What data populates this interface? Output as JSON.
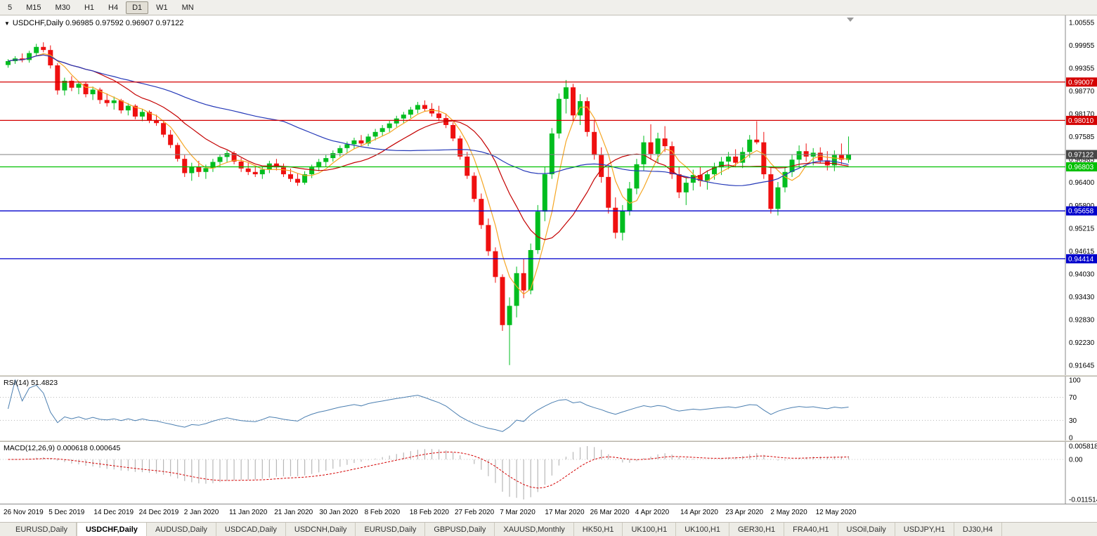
{
  "toolbar": {
    "timeframes": [
      {
        "label": "5",
        "active": false
      },
      {
        "label": "M15",
        "active": false
      },
      {
        "label": "M30",
        "active": false
      },
      {
        "label": "H1",
        "active": false
      },
      {
        "label": "H4",
        "active": false
      },
      {
        "label": "D1",
        "active": true
      },
      {
        "label": "W1",
        "active": false
      },
      {
        "label": "MN",
        "active": false
      }
    ]
  },
  "chart": {
    "menu_icon": "▼",
    "symbol": "USDCHF,Daily",
    "ohlc_text": "0.96985 0.97592 0.96907 0.97122"
  },
  "chart_data": [
    {
      "type": "candlestick",
      "title": "USDCHF,Daily",
      "open": 0.96985,
      "high": 0.97592,
      "low": 0.96907,
      "close": 0.97122,
      "price_max": 1.00555,
      "price_min": 0.91645,
      "y_axis_labels": [
        "1.00555",
        "0.99955",
        "0.99355",
        "0.98770",
        "0.98170",
        "0.97585",
        "0.96985",
        "0.96400",
        "0.95800",
        "0.95215",
        "0.94615",
        "0.94030",
        "0.93430",
        "0.92830",
        "0.92230",
        "0.91645"
      ],
      "x_tick_labels": [
        "26 Nov 2019",
        "5 Dec 2019",
        "14 Dec 2019",
        "24 Dec 2019",
        "2 Jan 2020",
        "11 Jan 2020",
        "21 Jan 2020",
        "30 Jan 2020",
        "8 Feb 2020",
        "18 Feb 2020",
        "27 Feb 2020",
        "7 Mar 2020",
        "17 Mar 2020",
        "26 Mar 2020",
        "4 Apr 2020",
        "14 Apr 2020",
        "23 Apr 2020",
        "2 May 2020",
        "12 May 2020"
      ],
      "up_color": "#00bd1f",
      "down_color": "#ef1010",
      "ma_lines": [
        {
          "period": 5,
          "color": "#f5a623"
        },
        {
          "period": 13,
          "color": "#c40000"
        },
        {
          "period": 40,
          "color": "#2438b8"
        }
      ],
      "hlines": [
        {
          "value": 0.99007,
          "label": "0.99007",
          "color": "#d40000"
        },
        {
          "value": 0.9801,
          "label": "0.98010",
          "color": "#d40000"
        },
        {
          "value": 0.96803,
          "label": "0.96803",
          "color": "#00c000"
        },
        {
          "value": 0.95658,
          "label": "0.95658",
          "color": "#0000cc"
        },
        {
          "value": 0.94414,
          "label": "0.94414",
          "color": "#0000cc"
        }
      ],
      "current_price": {
        "value": 0.97122,
        "label": "0.97122",
        "color": "#808080"
      },
      "ohlc": [
        [
          0.9945,
          0.996,
          0.9938,
          0.9955
        ],
        [
          0.9955,
          0.9968,
          0.9948,
          0.9962
        ],
        [
          0.9962,
          0.9975,
          0.9952,
          0.9958
        ],
        [
          0.9958,
          0.9982,
          0.9951,
          0.9976
        ],
        [
          0.9976,
          1.0,
          0.9968,
          0.9992
        ],
        [
          0.9992,
          1.0004,
          0.9978,
          0.9984
        ],
        [
          0.9984,
          0.9996,
          0.9936,
          0.9944
        ],
        [
          0.9944,
          0.995,
          0.9868,
          0.9879
        ],
        [
          0.9879,
          0.9912,
          0.9866,
          0.9904
        ],
        [
          0.9904,
          0.9916,
          0.9877,
          0.9886
        ],
        [
          0.9886,
          0.9903,
          0.9869,
          0.9896
        ],
        [
          0.9896,
          0.9901,
          0.9861,
          0.9869
        ],
        [
          0.9869,
          0.9889,
          0.9854,
          0.9881
        ],
        [
          0.9881,
          0.9886,
          0.9844,
          0.9854
        ],
        [
          0.9854,
          0.9871,
          0.9837,
          0.9846
        ],
        [
          0.9846,
          0.9863,
          0.9829,
          0.9853
        ],
        [
          0.9853,
          0.9857,
          0.9819,
          0.9827
        ],
        [
          0.9827,
          0.9846,
          0.9814,
          0.9839
        ],
        [
          0.9839,
          0.9843,
          0.9804,
          0.9811
        ],
        [
          0.9811,
          0.9831,
          0.9799,
          0.9823
        ],
        [
          0.9823,
          0.9827,
          0.9794,
          0.9801
        ],
        [
          0.9801,
          0.9816,
          0.9787,
          0.9794
        ],
        [
          0.9794,
          0.9799,
          0.9757,
          0.9764
        ],
        [
          0.9764,
          0.9776,
          0.9729,
          0.9737
        ],
        [
          0.9737,
          0.9743,
          0.9694,
          0.9701
        ],
        [
          0.9701,
          0.9711,
          0.9654,
          0.9664
        ],
        [
          0.9664,
          0.9691,
          0.9644,
          0.9681
        ],
        [
          0.9681,
          0.9696,
          0.9654,
          0.9667
        ],
        [
          0.9667,
          0.9686,
          0.9649,
          0.9677
        ],
        [
          0.9677,
          0.9701,
          0.9667,
          0.9693
        ],
        [
          0.9693,
          0.9713,
          0.9679,
          0.9706
        ],
        [
          0.9706,
          0.9723,
          0.9691,
          0.9716
        ],
        [
          0.9716,
          0.9721,
          0.9687,
          0.9694
        ],
        [
          0.9694,
          0.9703,
          0.9667,
          0.9676
        ],
        [
          0.9676,
          0.9691,
          0.9659,
          0.9667
        ],
        [
          0.9667,
          0.9683,
          0.9654,
          0.9661
        ],
        [
          0.9661,
          0.9681,
          0.9649,
          0.9673
        ],
        [
          0.9673,
          0.9696,
          0.9664,
          0.9689
        ],
        [
          0.9689,
          0.9701,
          0.9671,
          0.9679
        ],
        [
          0.9679,
          0.9689,
          0.9654,
          0.9661
        ],
        [
          0.9661,
          0.9676,
          0.9641,
          0.9649
        ],
        [
          0.9649,
          0.9663,
          0.9631,
          0.9639
        ],
        [
          0.9639,
          0.9669,
          0.9634,
          0.9661
        ],
        [
          0.9661,
          0.9686,
          0.9651,
          0.9679
        ],
        [
          0.9679,
          0.9701,
          0.9669,
          0.9693
        ],
        [
          0.9693,
          0.9711,
          0.9681,
          0.9703
        ],
        [
          0.9703,
          0.9723,
          0.9694,
          0.9716
        ],
        [
          0.9716,
          0.9736,
          0.9707,
          0.9729
        ],
        [
          0.9729,
          0.9746,
          0.9717,
          0.9739
        ],
        [
          0.9739,
          0.9756,
          0.9727,
          0.9749
        ],
        [
          0.9749,
          0.9763,
          0.9734,
          0.9741
        ],
        [
          0.9741,
          0.9766,
          0.9734,
          0.9759
        ],
        [
          0.9759,
          0.9779,
          0.9749,
          0.9771
        ],
        [
          0.9771,
          0.9789,
          0.9761,
          0.9781
        ],
        [
          0.9781,
          0.9801,
          0.9771,
          0.9793
        ],
        [
          0.9793,
          0.9813,
          0.9784,
          0.9806
        ],
        [
          0.9806,
          0.9823,
          0.9794,
          0.9816
        ],
        [
          0.9816,
          0.9836,
          0.9807,
          0.9829
        ],
        [
          0.9829,
          0.9849,
          0.9819,
          0.9841
        ],
        [
          0.9841,
          0.9853,
          0.9824,
          0.9831
        ],
        [
          0.9831,
          0.9846,
          0.9811,
          0.9819
        ],
        [
          0.9819,
          0.9839,
          0.9799,
          0.9807
        ],
        [
          0.9807,
          0.9819,
          0.9781,
          0.9789
        ],
        [
          0.9789,
          0.9796,
          0.9747,
          0.9754
        ],
        [
          0.9754,
          0.9761,
          0.9699,
          0.9707
        ],
        [
          0.9707,
          0.9719,
          0.9649,
          0.9657
        ],
        [
          0.9657,
          0.9666,
          0.9589,
          0.9597
        ],
        [
          0.9597,
          0.9611,
          0.9519,
          0.9529
        ],
        [
          0.9529,
          0.9546,
          0.9449,
          0.9461
        ],
        [
          0.9461,
          0.9471,
          0.9379,
          0.9394
        ],
        [
          0.9394,
          0.9401,
          0.9254,
          0.9269
        ],
        [
          0.9269,
          0.9341,
          0.9165,
          0.9319
        ],
        [
          0.9319,
          0.9421,
          0.9289,
          0.9404
        ],
        [
          0.9404,
          0.9441,
          0.9339,
          0.9359
        ],
        [
          0.9359,
          0.9481,
          0.9349,
          0.9464
        ],
        [
          0.9464,
          0.9581,
          0.9454,
          0.9564
        ],
        [
          0.9564,
          0.9681,
          0.9539,
          0.9661
        ],
        [
          0.9661,
          0.9781,
          0.9649,
          0.9767
        ],
        [
          0.9767,
          0.9871,
          0.9754,
          0.9857
        ],
        [
          0.9857,
          0.9906,
          0.9819,
          0.9887
        ],
        [
          0.9887,
          0.9896,
          0.9799,
          0.9814
        ],
        [
          0.9814,
          0.9869,
          0.9789,
          0.9851
        ],
        [
          0.9851,
          0.9861,
          0.9759,
          0.9771
        ],
        [
          0.9771,
          0.9801,
          0.9699,
          0.9711
        ],
        [
          0.9711,
          0.9731,
          0.9639,
          0.9654
        ],
        [
          0.9654,
          0.9681,
          0.9559,
          0.9574
        ],
        [
          0.9574,
          0.9601,
          0.9494,
          0.9509
        ],
        [
          0.9509,
          0.9581,
          0.9489,
          0.9567
        ],
        [
          0.9567,
          0.9641,
          0.9554,
          0.9624
        ],
        [
          0.9624,
          0.9701,
          0.9609,
          0.9687
        ],
        [
          0.9687,
          0.9761,
          0.9671,
          0.9744
        ],
        [
          0.9744,
          0.9791,
          0.9699,
          0.9714
        ],
        [
          0.9714,
          0.9769,
          0.9689,
          0.9754
        ],
        [
          0.9754,
          0.9786,
          0.9719,
          0.9734
        ],
        [
          0.9734,
          0.9746,
          0.9649,
          0.9661
        ],
        [
          0.9661,
          0.9681,
          0.9599,
          0.9614
        ],
        [
          0.9614,
          0.9651,
          0.9581,
          0.9639
        ],
        [
          0.9639,
          0.9673,
          0.9619,
          0.9659
        ],
        [
          0.9659,
          0.9681,
          0.9629,
          0.9644
        ],
        [
          0.9644,
          0.9671,
          0.9621,
          0.9661
        ],
        [
          0.9661,
          0.9691,
          0.9647,
          0.9679
        ],
        [
          0.9679,
          0.9706,
          0.9659,
          0.9694
        ],
        [
          0.9694,
          0.9719,
          0.9674,
          0.9707
        ],
        [
          0.9707,
          0.9726,
          0.9679,
          0.9691
        ],
        [
          0.9691,
          0.9731,
          0.9677,
          0.9719
        ],
        [
          0.9719,
          0.9763,
          0.9704,
          0.9751
        ],
        [
          0.9751,
          0.9799,
          0.9739,
          0.9744
        ],
        [
          0.9744,
          0.9771,
          0.9649,
          0.9661
        ],
        [
          0.9661,
          0.9681,
          0.9559,
          0.9571
        ],
        [
          0.9571,
          0.9641,
          0.9554,
          0.9627
        ],
        [
          0.9627,
          0.9681,
          0.9614,
          0.9667
        ],
        [
          0.9667,
          0.9713,
          0.9654,
          0.9699
        ],
        [
          0.9699,
          0.9736,
          0.9679,
          0.9721
        ],
        [
          0.9721,
          0.9741,
          0.9694,
          0.9707
        ],
        [
          0.9707,
          0.9729,
          0.9684,
          0.9717
        ],
        [
          0.9717,
          0.9731,
          0.9689,
          0.9697
        ],
        [
          0.9697,
          0.9721,
          0.9671,
          0.9684
        ],
        [
          0.9684,
          0.9723,
          0.9669,
          0.9711
        ],
        [
          0.9711,
          0.9741,
          0.9687,
          0.9699
        ],
        [
          0.96985,
          0.97592,
          0.96907,
          0.97122
        ]
      ]
    },
    {
      "type": "line",
      "name": "RSI",
      "label": "RSI(14) 51.4823",
      "period": 14,
      "value": 51.4823,
      "color": "#4a7eb0",
      "axis_labels": [
        {
          "text": "100",
          "level": 100
        },
        {
          "text": "70",
          "level": 70
        },
        {
          "text": "30",
          "level": 30
        },
        {
          "text": "0",
          "level": 0
        }
      ]
    },
    {
      "type": "macd",
      "label": "MACD(12,26,9) 0.000618 0.000645",
      "fast": 12,
      "slow": 26,
      "signal": 9,
      "macd_value": 0.000618,
      "signal_value": 0.000645,
      "axis_labels": [
        "0.005818",
        "0.00",
        "-0.011514"
      ],
      "histogram_color": "#b8b8b8",
      "signal_color": "#d40000"
    }
  ],
  "tab_bar": {
    "tabs": [
      {
        "label": "EURUSD,Daily",
        "active": false
      },
      {
        "label": "USDCHF,Daily",
        "active": true
      },
      {
        "label": "AUDUSD,Daily",
        "active": false
      },
      {
        "label": "USDCAD,Daily",
        "active": false
      },
      {
        "label": "USDCNH,Daily",
        "active": false
      },
      {
        "label": "EURUSD,Daily",
        "active": false
      },
      {
        "label": "GBPUSD,Daily",
        "active": false
      },
      {
        "label": "XAUUSD,Monthly",
        "active": false
      },
      {
        "label": "HK50,H1",
        "active": false
      },
      {
        "label": "UK100,H1",
        "active": false
      },
      {
        "label": "UK100,H1",
        "active": false
      },
      {
        "label": "GER30,H1",
        "active": false
      },
      {
        "label": "FRA40,H1",
        "active": false
      },
      {
        "label": "USOil,Daily",
        "active": false
      },
      {
        "label": "USDJPY,H1",
        "active": false
      },
      {
        "label": "DJ30,H4",
        "active": false
      }
    ]
  }
}
